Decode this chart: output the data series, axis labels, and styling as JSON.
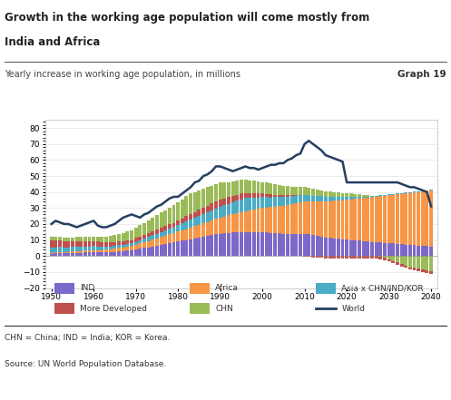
{
  "title_line1": "Growth in the working age population will come mostly from",
  "title_line2": "India and Africa",
  "subtitle": "Yearly increase in working age population, in millions",
  "graph_label": "Graph 19",
  "footnote1": "CHN = China; IND = India; KOR = Korea.",
  "footnote2": "Source: UN World Population Database.",
  "years": [
    1950,
    1951,
    1952,
    1953,
    1954,
    1955,
    1956,
    1957,
    1958,
    1959,
    1960,
    1961,
    1962,
    1963,
    1964,
    1965,
    1966,
    1967,
    1968,
    1969,
    1970,
    1971,
    1972,
    1973,
    1974,
    1975,
    1976,
    1977,
    1978,
    1979,
    1980,
    1981,
    1982,
    1983,
    1984,
    1985,
    1986,
    1987,
    1988,
    1989,
    1990,
    1991,
    1992,
    1993,
    1994,
    1995,
    1996,
    1997,
    1998,
    1999,
    2000,
    2001,
    2002,
    2003,
    2004,
    2005,
    2006,
    2007,
    2008,
    2009,
    2010,
    2011,
    2012,
    2013,
    2014,
    2015,
    2016,
    2017,
    2018,
    2019,
    2020,
    2021,
    2022,
    2023,
    2024,
    2025,
    2026,
    2027,
    2028,
    2029,
    2030,
    2031,
    2032,
    2033,
    2034,
    2035,
    2036,
    2037,
    2038,
    2039,
    2040
  ],
  "IND": [
    1.5,
    1.6,
    1.7,
    1.7,
    1.8,
    1.9,
    2.0,
    2.1,
    2.2,
    2.3,
    2.4,
    2.3,
    2.2,
    2.2,
    2.3,
    2.5,
    2.8,
    3.0,
    3.3,
    3.6,
    4.0,
    4.5,
    5.0,
    5.5,
    6.0,
    6.5,
    7.0,
    7.5,
    8.0,
    8.5,
    9.0,
    9.5,
    10.0,
    10.5,
    11.0,
    11.5,
    12.0,
    12.5,
    13.0,
    13.5,
    14.0,
    14.2,
    14.4,
    14.6,
    14.8,
    15.0,
    15.0,
    15.0,
    15.0,
    15.0,
    15.0,
    14.8,
    14.5,
    14.3,
    14.2,
    14.0,
    14.0,
    14.0,
    14.0,
    14.0,
    14.0,
    13.5,
    13.0,
    12.5,
    12.0,
    11.5,
    11.2,
    11.0,
    10.8,
    10.5,
    10.3,
    10.0,
    9.8,
    9.5,
    9.3,
    9.0,
    8.8,
    8.6,
    8.4,
    8.2,
    8.0,
    7.8,
    7.6,
    7.4,
    7.2,
    7.0,
    6.8,
    6.6,
    6.4,
    6.2,
    6.0
  ],
  "Africa": [
    0.5,
    0.6,
    0.7,
    0.7,
    0.8,
    0.9,
    1.0,
    1.1,
    1.2,
    1.3,
    1.4,
    1.5,
    1.6,
    1.7,
    1.8,
    2.0,
    2.2,
    2.4,
    2.6,
    2.8,
    3.0,
    3.3,
    3.6,
    3.9,
    4.2,
    4.5,
    4.9,
    5.2,
    5.5,
    5.8,
    6.2,
    6.5,
    6.8,
    7.2,
    7.6,
    8.0,
    8.4,
    8.8,
    9.2,
    9.6,
    10.0,
    10.5,
    11.0,
    11.5,
    12.0,
    12.5,
    13.0,
    13.5,
    14.0,
    14.5,
    15.0,
    15.5,
    16.0,
    16.5,
    17.0,
    17.5,
    18.0,
    18.5,
    19.0,
    19.5,
    20.0,
    20.5,
    21.0,
    21.5,
    22.0,
    22.5,
    23.0,
    23.5,
    24.0,
    24.5,
    25.0,
    25.5,
    26.0,
    26.5,
    27.0,
    27.5,
    28.0,
    28.5,
    29.0,
    29.5,
    30.0,
    30.5,
    31.0,
    31.5,
    32.0,
    32.5,
    33.0,
    33.5,
    34.0,
    34.5,
    35.0
  ],
  "Asia_ex": [
    3.5,
    3.3,
    3.2,
    3.0,
    2.9,
    2.8,
    2.7,
    2.6,
    2.5,
    2.4,
    2.3,
    2.2,
    2.1,
    2.0,
    1.9,
    1.8,
    1.7,
    1.6,
    1.5,
    1.4,
    1.8,
    2.0,
    2.2,
    2.5,
    2.8,
    3.0,
    3.2,
    3.5,
    3.8,
    4.0,
    4.2,
    4.5,
    4.8,
    5.0,
    5.2,
    5.5,
    5.8,
    6.0,
    6.2,
    6.5,
    6.8,
    7.0,
    7.2,
    7.5,
    7.8,
    8.0,
    8.2,
    7.8,
    7.5,
    7.0,
    6.8,
    6.5,
    6.2,
    6.0,
    5.8,
    5.5,
    5.2,
    5.0,
    4.8,
    4.5,
    4.3,
    4.0,
    3.8,
    3.5,
    3.3,
    3.0,
    2.8,
    2.5,
    2.3,
    2.0,
    1.8,
    1.5,
    1.3,
    1.0,
    0.8,
    0.5,
    0.5,
    0.5,
    0.5,
    0.5,
    0.5,
    0.5,
    0.5,
    0.5,
    0.5,
    0.5,
    0.5,
    0.5,
    0.5,
    0.5,
    0.5
  ],
  "More_Dev": [
    4.5,
    4.3,
    4.1,
    3.9,
    3.7,
    3.6,
    3.5,
    3.4,
    3.3,
    3.2,
    3.1,
    3.0,
    2.9,
    2.8,
    2.7,
    2.6,
    2.5,
    2.4,
    2.3,
    2.2,
    2.5,
    2.5,
    2.5,
    2.5,
    2.5,
    2.5,
    2.5,
    2.5,
    2.5,
    2.5,
    2.8,
    3.0,
    3.2,
    3.4,
    3.6,
    3.8,
    4.0,
    4.2,
    4.4,
    4.5,
    4.5,
    4.3,
    4.2,
    4.0,
    3.8,
    3.5,
    3.3,
    3.0,
    2.8,
    2.5,
    2.2,
    2.0,
    1.8,
    1.5,
    1.2,
    1.0,
    0.8,
    0.5,
    0.2,
    0.0,
    -0.2,
    -0.5,
    -0.8,
    -1.0,
    -1.2,
    -1.3,
    -1.4,
    -1.5,
    -1.5,
    -1.5,
    -1.5,
    -1.5,
    -1.5,
    -1.5,
    -1.5,
    -1.5,
    -1.5,
    -1.5,
    -1.5,
    -1.5,
    -1.5,
    -1.5,
    -1.5,
    -1.5,
    -1.5,
    -1.5,
    -1.5,
    -1.5,
    -1.5,
    -1.5,
    -1.5
  ],
  "CHN": [
    2.0,
    2.1,
    2.2,
    2.3,
    2.4,
    2.5,
    2.6,
    2.7,
    2.8,
    2.9,
    3.0,
    3.2,
    3.4,
    3.6,
    3.8,
    4.0,
    4.5,
    5.0,
    5.5,
    6.0,
    6.5,
    7.0,
    7.5,
    8.0,
    8.5,
    9.0,
    9.5,
    10.0,
    10.5,
    11.0,
    11.5,
    12.0,
    12.5,
    13.0,
    12.5,
    12.0,
    11.8,
    11.5,
    11.2,
    11.0,
    10.5,
    10.0,
    9.5,
    9.0,
    8.8,
    8.5,
    8.2,
    8.0,
    7.8,
    7.5,
    7.2,
    7.0,
    6.8,
    6.5,
    6.2,
    6.0,
    5.8,
    5.5,
    5.2,
    5.0,
    4.8,
    4.5,
    4.2,
    4.0,
    3.8,
    3.5,
    3.2,
    3.0,
    2.8,
    2.5,
    2.2,
    2.0,
    1.8,
    1.5,
    1.2,
    1.0,
    0.5,
    0.0,
    -0.5,
    -1.0,
    -2.0,
    -3.0,
    -4.0,
    -5.0,
    -6.0,
    -7.0,
    -7.5,
    -8.0,
    -8.5,
    -9.0,
    -9.5
  ],
  "World": [
    20,
    22,
    21,
    20,
    20,
    19,
    18,
    19,
    20,
    21,
    22,
    19,
    18,
    18,
    19,
    20,
    22,
    24,
    25,
    26,
    25,
    24,
    26,
    27,
    29,
    31,
    32,
    34,
    36,
    37,
    37,
    39,
    41,
    43,
    46,
    47,
    50,
    51,
    53,
    56,
    56,
    55,
    54,
    53,
    54,
    55,
    56,
    55,
    55,
    54,
    55,
    56,
    57,
    57,
    58,
    58,
    60,
    61,
    63,
    64,
    70,
    72,
    70,
    68,
    66,
    63,
    62,
    61,
    60,
    59,
    46,
    46,
    46,
    46,
    46,
    46,
    46,
    46,
    46,
    46,
    46,
    46,
    46,
    45,
    44,
    43,
    43,
    42,
    41,
    40,
    31
  ],
  "colors": {
    "IND": "#7B68C8",
    "Africa": "#F79646",
    "Asia_ex": "#4BACC6",
    "More_Dev": "#C0504D",
    "CHN": "#9BBB59",
    "World": "#243F60"
  },
  "bar_width": 0.85
}
